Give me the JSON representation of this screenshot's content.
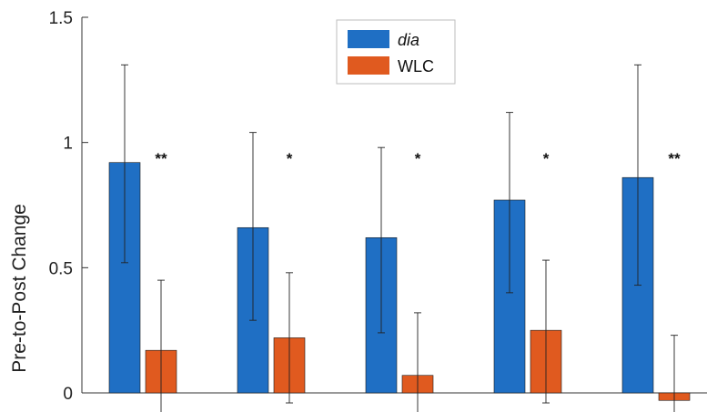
{
  "chart_data": {
    "type": "bar",
    "title": "",
    "xlabel": "",
    "ylabel": "Pre-to-Post Change",
    "ylim": [
      0,
      1.5
    ],
    "yticks": [
      0,
      0.5,
      1,
      1.5
    ],
    "ytick_labels": [
      "0",
      "0.5",
      "1",
      "1.5"
    ],
    "categories": [
      "",
      "",
      "",
      "",
      ""
    ],
    "series": [
      {
        "name": "dia",
        "color": "#1F6FC4",
        "values": [
          0.92,
          0.66,
          0.62,
          0.77,
          0.86
        ],
        "error_low": [
          0.52,
          0.29,
          0.24,
          0.4,
          0.43
        ],
        "error_high": [
          1.31,
          1.04,
          0.98,
          1.12,
          1.31
        ]
      },
      {
        "name": "WLC",
        "color": "#E05A1F",
        "values": [
          0.17,
          0.22,
          0.07,
          0.25,
          -0.03
        ],
        "error_low": [
          -0.08,
          -0.04,
          -0.08,
          -0.04,
          -0.08
        ],
        "error_high": [
          0.45,
          0.48,
          0.32,
          0.53,
          0.23
        ]
      }
    ],
    "significance": [
      "**",
      "*",
      "*",
      "*",
      "**"
    ],
    "legend": {
      "position": "top-center",
      "items": [
        "dia",
        "WLC"
      ]
    },
    "grid": false
  }
}
